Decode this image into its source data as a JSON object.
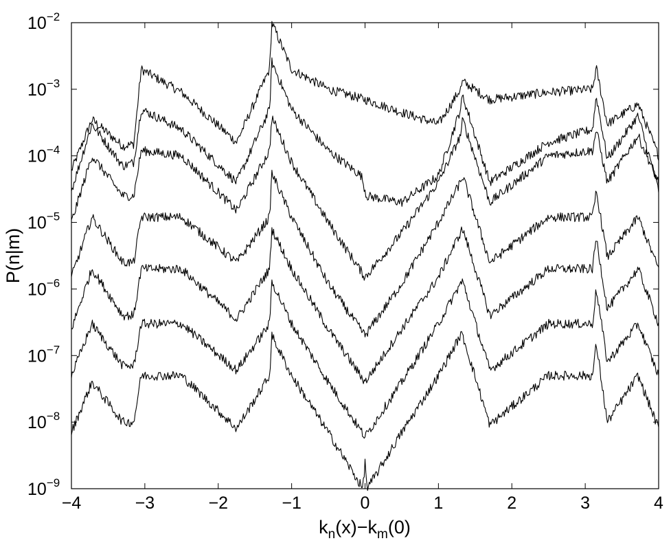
{
  "chart_data": {
    "type": "line",
    "xlabel": "k_n(x)−k_m(0)",
    "ylabel": "P(n|m)",
    "xlim": [
      -4,
      4
    ],
    "ylim": [
      1e-09,
      0.01
    ],
    "yscale": "log",
    "grid": false,
    "legend": "none",
    "xticks": [
      -4,
      -3,
      -2,
      -1,
      0,
      1,
      2,
      3,
      4
    ],
    "xtick_labels": [
      "−4",
      "−3",
      "−2",
      "−1",
      "0",
      "1",
      "2",
      "3",
      "4"
    ],
    "yticks": [
      1e-09,
      1e-08,
      1e-07,
      1e-06,
      1e-05,
      0.0001,
      0.001,
      0.01
    ],
    "ytick_labels": [
      {
        "base": "10",
        "exp": "−9"
      },
      {
        "base": "10",
        "exp": "−8"
      },
      {
        "base": "10",
        "exp": "−7"
      },
      {
        "base": "10",
        "exp": "−6"
      },
      {
        "base": "10",
        "exp": "−5"
      },
      {
        "base": "10",
        "exp": "−4"
      },
      {
        "base": "10",
        "exp": "−3"
      },
      {
        "base": "10",
        "exp": "−2"
      }
    ],
    "series": [
      {
        "x": [
          -4,
          -3.72,
          -3.3,
          -3.15,
          -3.05,
          -2.5,
          -1.75,
          -1.3,
          -1.27,
          -1.0,
          -0.5,
          0,
          0.5,
          1.0,
          1.3,
          1.33,
          1.7,
          2.5,
          3.1,
          3.15,
          3.3,
          3.72,
          4
        ],
        "y": [
          6e-05,
          0.00035,
          0.00014,
          0.00015,
          0.002,
          0.0009,
          0.00016,
          0.002,
          0.01,
          0.002,
          0.001,
          0.0007,
          0.00045,
          0.0003,
          0.001,
          0.0013,
          0.0007,
          0.0009,
          0.001,
          0.0021,
          0.0003,
          0.0006,
          0.0001
        ]
      },
      {
        "x": [
          -4,
          -3.72,
          -3.3,
          -3.15,
          -3.05,
          -2.5,
          -1.75,
          -1.3,
          -1.27,
          -1.0,
          -0.5,
          -0.05,
          0.02,
          0.5,
          1.0,
          1.3,
          1.33,
          1.7,
          2.5,
          3.1,
          3.15,
          3.3,
          3.72,
          4
        ],
        "y": [
          3e-05,
          0.0003,
          7e-05,
          8e-05,
          0.0005,
          0.00025,
          4e-05,
          0.0005,
          0.0026,
          0.0005,
          0.00012,
          5e-05,
          2.5e-05,
          2e-05,
          5e-05,
          0.0005,
          0.0008,
          4e-05,
          0.00016,
          0.00025,
          0.0008,
          9e-05,
          0.0004,
          3e-05
        ]
      },
      {
        "x": [
          -4,
          -3.72,
          -3.3,
          -3.15,
          -3.05,
          -2.5,
          -1.75,
          -1.3,
          -1.27,
          -1.0,
          -0.5,
          0,
          0.5,
          1.0,
          1.3,
          1.33,
          1.7,
          2.5,
          3.1,
          3.15,
          3.3,
          3.72,
          4
        ],
        "y": [
          1e-05,
          0.0001,
          2.5e-05,
          2.5e-05,
          0.00012,
          0.0001,
          1.5e-05,
          0.00012,
          0.00038,
          8e-05,
          1e-05,
          1.5e-06,
          7e-06,
          4e-05,
          0.0002,
          0.00035,
          2e-05,
          0.0001,
          0.00012,
          0.00025,
          4e-05,
          0.0002,
          4e-05
        ]
      },
      {
        "x": [
          -4,
          -3.72,
          -3.3,
          -3.15,
          -3.05,
          -2.5,
          -1.75,
          -1.3,
          -1.27,
          -1.0,
          -0.5,
          0,
          0.5,
          1.0,
          1.3,
          1.33,
          1.7,
          2.5,
          3.1,
          3.15,
          3.3,
          3.72,
          4
        ],
        "y": [
          1.5e-06,
          1.2e-05,
          2.5e-06,
          2.5e-06,
          1.2e-05,
          1.2e-05,
          2.5e-06,
          1.2e-05,
          5.5e-05,
          1.2e-05,
          1.2e-06,
          2e-07,
          1.2e-06,
          1e-05,
          4e-05,
          5e-05,
          2.5e-06,
          1.2e-05,
          1.2e-05,
          3e-05,
          3e-06,
          1.2e-05,
          2e-06
        ]
      },
      {
        "x": [
          -4,
          -3.72,
          -3.3,
          -3.15,
          -3.05,
          -2.5,
          -1.75,
          -1.3,
          -1.27,
          -1.0,
          -0.5,
          0,
          0.5,
          1.0,
          1.3,
          1.33,
          1.7,
          2.5,
          3.1,
          3.15,
          3.3,
          3.72,
          4
        ],
        "y": [
          2.5e-07,
          2e-06,
          4e-07,
          4e-07,
          2e-06,
          2e-06,
          3.5e-07,
          2e-06,
          8e-06,
          2e-06,
          2.5e-07,
          4e-08,
          2.5e-07,
          1.5e-06,
          7e-06,
          8e-06,
          4e-07,
          2e-06,
          2e-06,
          6e-06,
          5e-07,
          2e-06,
          3e-07
        ]
      },
      {
        "x": [
          -4,
          -3.72,
          -3.3,
          -3.15,
          -3.05,
          -2.5,
          -1.75,
          -1.3,
          -1.27,
          -1.0,
          -0.5,
          0,
          0.5,
          1.0,
          1.3,
          1.33,
          1.7,
          2.5,
          3.1,
          3.15,
          3.3,
          3.72,
          4
        ],
        "y": [
          5e-08,
          3e-07,
          7e-08,
          7e-08,
          3e-07,
          3e-07,
          6e-08,
          3e-07,
          1.3e-06,
          3e-07,
          4e-08,
          6e-09,
          4e-08,
          3e-07,
          1.2e-06,
          1.3e-06,
          6e-08,
          3e-07,
          3e-07,
          1e-06,
          8e-08,
          3e-07,
          5e-08
        ]
      },
      {
        "x": [
          -4,
          -3.72,
          -3.3,
          -3.15,
          -3.05,
          -2.5,
          -1.75,
          -1.3,
          -1.27,
          -1.0,
          -0.5,
          -0.03,
          0,
          0.03,
          0.5,
          1.0,
          1.3,
          1.33,
          1.7,
          2.5,
          3.1,
          3.15,
          3.3,
          3.72,
          4
        ],
        "y": [
          7e-09,
          4e-08,
          1e-08,
          1e-08,
          5e-08,
          5e-08,
          8e-09,
          5e-08,
          2e-07,
          5e-08,
          7e-09,
          1e-09,
          2.5e-09,
          1e-09,
          7e-09,
          5e-08,
          2e-07,
          2e-07,
          9e-09,
          5e-08,
          5e-08,
          1.5e-07,
          1e-08,
          5e-08,
          8e-09
        ]
      }
    ]
  }
}
